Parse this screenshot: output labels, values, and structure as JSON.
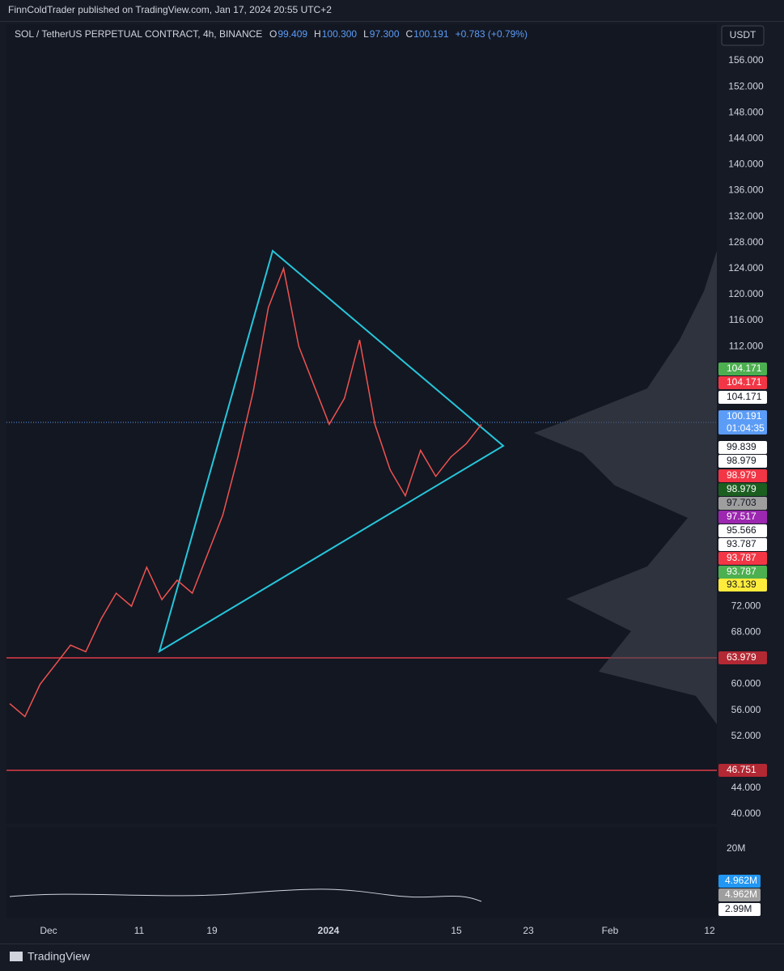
{
  "header": {
    "publisher": "FinnColdTrader published on TradingView.com, Jan 17, 2024 20:55 UTC+2"
  },
  "legend": {
    "symbol": "SOL / TetherUS PERPETUAL CONTRACT, 4h, BINANCE",
    "ohlc": [
      {
        "key": "O",
        "value": "99.409"
      },
      {
        "key": "H",
        "value": "100.300"
      },
      {
        "key": "L",
        "value": "97.300"
      },
      {
        "key": "C",
        "value": "100.191"
      }
    ],
    "change": "+0.783 (+0.79%)"
  },
  "currency": "USDT",
  "price_axis": {
    "ticks": [
      {
        "value": 156,
        "label": "156.000"
      },
      {
        "value": 152,
        "label": "152.000"
      },
      {
        "value": 148,
        "label": "148.000"
      },
      {
        "value": 144,
        "label": "144.000"
      },
      {
        "value": 140,
        "label": "140.000"
      },
      {
        "value": 136,
        "label": "136.000"
      },
      {
        "value": 132,
        "label": "132.000"
      },
      {
        "value": 128,
        "label": "128.000"
      },
      {
        "value": 124,
        "label": "124.000"
      },
      {
        "value": 120,
        "label": "120.000"
      },
      {
        "value": 116,
        "label": "116.000"
      },
      {
        "value": 112,
        "label": "112.000"
      },
      {
        "value": 72,
        "label": "72.000"
      },
      {
        "value": 68,
        "label": "68.000"
      },
      {
        "value": 60,
        "label": "60.000"
      },
      {
        "value": 56,
        "label": "56.000"
      },
      {
        "value": 52,
        "label": "52.000"
      },
      {
        "value": 44,
        "label": "44.000"
      },
      {
        "value": 40,
        "label": "40.000"
      }
    ]
  },
  "price_tags": [
    {
      "label": "104.171",
      "color": "#4caf50"
    },
    {
      "label": "104.171",
      "color": "#f23645"
    },
    {
      "label": "104.171",
      "color": "#ffffff"
    },
    {
      "label": "100.191",
      "sub": "01:04:35",
      "color": "#5b9cf6"
    },
    {
      "label": "99.839",
      "color": "#ffffff"
    },
    {
      "label": "98.979",
      "color": "#ffffff"
    },
    {
      "label": "98.979",
      "color": "#f23645"
    },
    {
      "label": "98.979",
      "color": "#1b5e20"
    },
    {
      "label": "97.703",
      "color": "#9e9e9e"
    },
    {
      "label": "97.517",
      "color": "#9c27b0"
    },
    {
      "label": "95.566",
      "color": "#ffffff"
    },
    {
      "label": "93.787",
      "color": "#ffffff"
    },
    {
      "label": "93.787",
      "color": "#f23645"
    },
    {
      "label": "93.787",
      "color": "#4caf50"
    },
    {
      "label": "93.139",
      "color": "#ffeb3b"
    },
    {
      "label": "63.979",
      "color": "#b22833"
    },
    {
      "label": "46.751",
      "color": "#b22833"
    }
  ],
  "time_axis": [
    "Dec",
    "11",
    "19",
    "2024",
    "15",
    "23",
    "Feb",
    "12"
  ],
  "volume_axis": {
    "ticks": [
      "20M"
    ],
    "tags": [
      {
        "label": "4.962M",
        "color": "#2196f3"
      },
      {
        "label": "4.962M",
        "color": "#9e9e9e"
      },
      {
        "label": "2.99M",
        "color": "#ffffff"
      }
    ]
  },
  "price_path": [
    57,
    55,
    60,
    63,
    66,
    65,
    70,
    74,
    72,
    78,
    73,
    76,
    74,
    80,
    86,
    95,
    105,
    118,
    124,
    112,
    106,
    100,
    104,
    113,
    100,
    93,
    89,
    96,
    92,
    95,
    97,
    100
  ],
  "footer": {
    "brand": "TradingView"
  }
}
